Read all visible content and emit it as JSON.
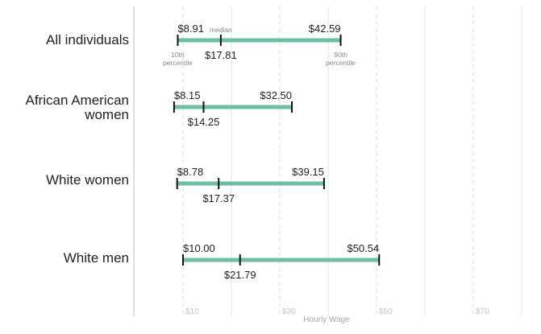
{
  "chart_data": {
    "type": "range",
    "xlabel": "Hourly Wage",
    "xlim": [
      0,
      75
    ],
    "xticks": [
      10,
      30,
      50,
      70
    ],
    "xtick_labels": [
      "$10",
      "$30",
      "$50",
      "$70"
    ],
    "grid": true,
    "bar_color": "#6dbf9e",
    "annotations": {
      "median": "median",
      "p10": [
        "10th",
        "percentile"
      ],
      "p90": [
        "90th",
        "percentile"
      ]
    },
    "categories": [
      {
        "name": [
          "All individuals"
        ],
        "p10": 8.91,
        "median": 17.81,
        "p90": 42.59,
        "p10_label": "$8.91",
        "median_label": "$17.81",
        "p90_label": "$42.59"
      },
      {
        "name": [
          "African American",
          "women"
        ],
        "p10": 8.15,
        "median": 14.25,
        "p90": 32.5,
        "p10_label": "$8.15",
        "median_label": "$14.25",
        "p90_label": "$32.50"
      },
      {
        "name": [
          "White women"
        ],
        "p10": 8.78,
        "median": 17.37,
        "p90": 39.15,
        "p10_label": "$8.78",
        "median_label": "$17.37",
        "p90_label": "$39.15"
      },
      {
        "name": [
          "White men"
        ],
        "p10": 10.0,
        "median": 21.79,
        "p90": 50.54,
        "p10_label": "$10.00",
        "median_label": "$21.79",
        "p90_label": "$50.54"
      }
    ]
  }
}
